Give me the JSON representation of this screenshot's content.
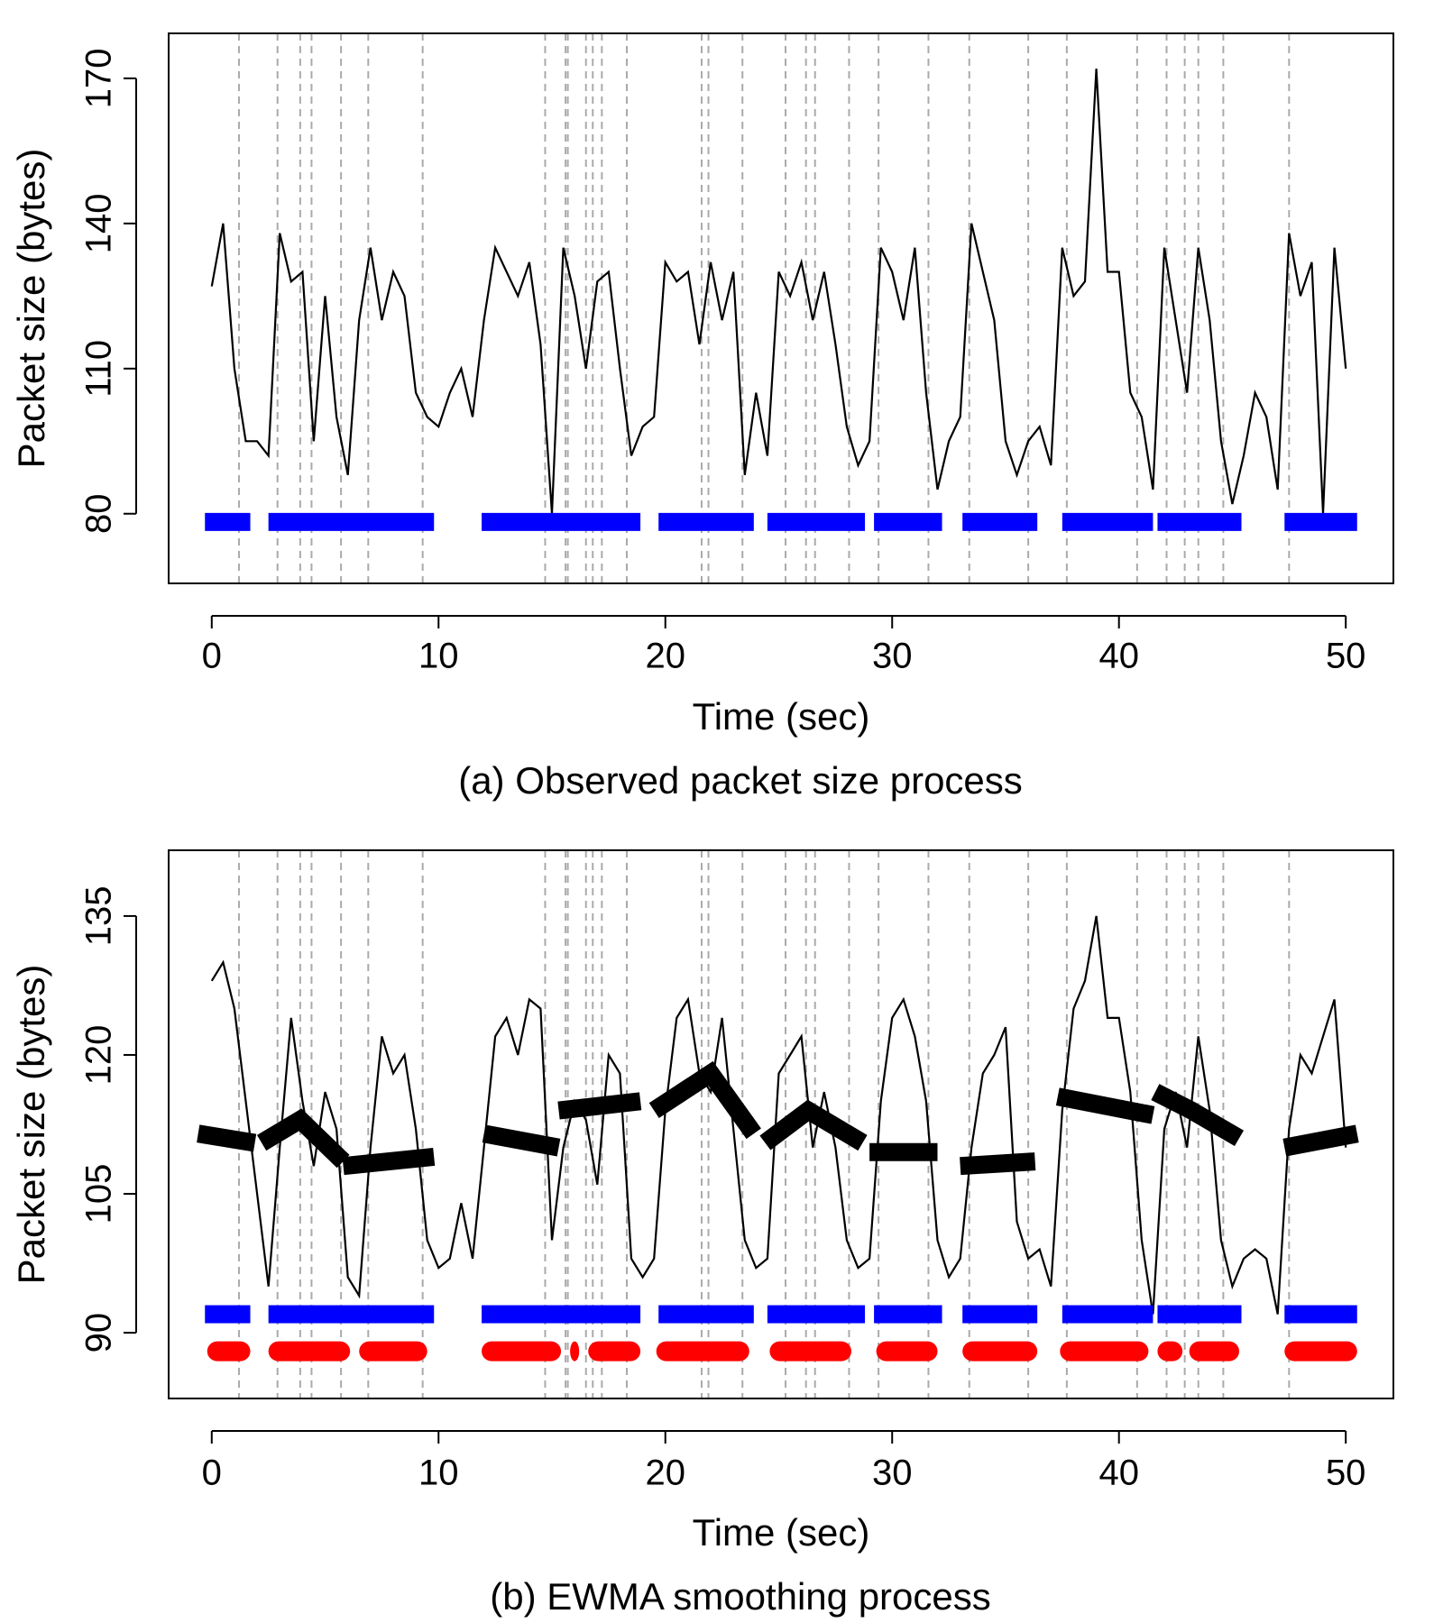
{
  "chart_data": [
    {
      "type": "line",
      "title": "(a) Observed packet size process",
      "xlabel": "Time (sec)",
      "ylabel": "Packet size (bytes)",
      "xlim": [
        -1.9,
        52.1
      ],
      "ylim": [
        65.6,
        179.3
      ],
      "xticks": [
        0,
        10,
        20,
        30,
        40,
        50
      ],
      "yticks": [
        80,
        110,
        140,
        170
      ],
      "line": {
        "color": "#000000",
        "x": [
          0,
          0.5,
          1,
          1.5,
          2,
          2.5,
          3,
          3.5,
          4,
          4.5,
          5,
          5.5,
          6,
          6.5,
          7,
          7.5,
          8,
          8.5,
          9,
          9.5,
          10,
          10.5,
          11,
          11.5,
          12,
          12.5,
          13,
          13.5,
          14,
          14.5,
          15,
          15.5,
          16,
          16.5,
          17,
          17.5,
          18,
          18.5,
          19,
          19.5,
          20,
          20.5,
          21,
          21.5,
          22,
          22.5,
          23,
          23.5,
          24,
          24.5,
          25,
          25.5,
          26,
          26.5,
          27,
          27.5,
          28,
          28.5,
          29,
          29.5,
          30,
          30.5,
          31,
          31.5,
          32,
          32.5,
          33,
          33.5,
          34,
          34.5,
          35,
          35.5,
          36,
          36.5,
          37,
          37.5,
          38,
          38.5,
          39,
          39.5,
          40,
          40.5,
          41,
          41.5,
          42,
          42.5,
          43,
          43.5,
          44,
          44.5,
          45,
          45.5,
          46,
          46.5,
          47,
          47.5,
          48,
          48.5,
          49,
          49.5,
          50
        ],
        "values": [
          127,
          140,
          110,
          95,
          95,
          92,
          138,
          128,
          130,
          95,
          125,
          100,
          88,
          120,
          135,
          120,
          130,
          125,
          105,
          100,
          98,
          105,
          110,
          100,
          120,
          135,
          130,
          125,
          132,
          115,
          80,
          135,
          125,
          110,
          128,
          130,
          110,
          92,
          98,
          100,
          132,
          128,
          130,
          115,
          132,
          120,
          130,
          88,
          105,
          92,
          130,
          125,
          132,
          120,
          130,
          115,
          98,
          90,
          95,
          135,
          130,
          120,
          135,
          105,
          85,
          95,
          100,
          140,
          130,
          120,
          95,
          88,
          95,
          98,
          90,
          135,
          125,
          128,
          172,
          130,
          130,
          105,
          100,
          85,
          135,
          120,
          105,
          135,
          120,
          95,
          82,
          92,
          105,
          100,
          85,
          138,
          125,
          132,
          80,
          135,
          110
        ]
      },
      "breakpoints": [
        1.2,
        2.9,
        3.9,
        4.4,
        5.7,
        6.9,
        9.3,
        14.7,
        15.6,
        15.7,
        16.5,
        16.8,
        17.2,
        18.3,
        21.6,
        21.9,
        23.4,
        25.3,
        26.2,
        26.6,
        28.1,
        29.4,
        31.6,
        33.4,
        36.0,
        37.7,
        40.8,
        42.1,
        42.9,
        43.5,
        44.6,
        47.5
      ],
      "intervals": [
        {
          "color": "#0000ff",
          "level": 78.3,
          "segments": [
            [
              -0.3,
              1.7
            ],
            [
              2.5,
              9.8
            ],
            [
              11.9,
              18.9
            ],
            [
              19.7,
              23.9
            ],
            [
              24.5,
              28.8
            ],
            [
              29.2,
              32.2
            ],
            [
              33.1,
              36.4
            ],
            [
              37.5,
              41.5
            ],
            [
              41.7,
              45.4
            ],
            [
              47.3,
              50.5
            ]
          ]
        }
      ]
    },
    {
      "type": "line",
      "title": "(b) EWMA smoothing process",
      "xlabel": "Time (sec)",
      "ylabel": "Packet size (bytes)",
      "xlim": [
        -1.9,
        52.1
      ],
      "ylim": [
        82.9,
        142.1
      ],
      "xticks": [
        0,
        10,
        20,
        30,
        40,
        50
      ],
      "yticks": [
        90,
        105,
        120,
        135
      ],
      "line": {
        "color": "#000000",
        "x": [
          0,
          0.5,
          1,
          1.5,
          2,
          2.5,
          3,
          3.5,
          4,
          4.5,
          5,
          5.5,
          6,
          6.5,
          7,
          7.5,
          8,
          8.5,
          9,
          9.5,
          10,
          10.5,
          11,
          11.5,
          12,
          12.5,
          13,
          13.5,
          14,
          14.5,
          15,
          15.5,
          16,
          16.5,
          17,
          17.5,
          18,
          18.5,
          19,
          19.5,
          20,
          20.5,
          21,
          21.5,
          22,
          22.5,
          23,
          23.5,
          24,
          24.5,
          25,
          25.5,
          26,
          26.5,
          27,
          27.5,
          28,
          28.5,
          29,
          29.5,
          30,
          30.5,
          31,
          31.5,
          32,
          32.5,
          33,
          33.5,
          34,
          34.5,
          35,
          35.5,
          36,
          36.5,
          37,
          37.5,
          38,
          38.5,
          39,
          39.5,
          40,
          40.5,
          41,
          41.5,
          42,
          42.5,
          43,
          43.5,
          44,
          44.5,
          45,
          45.5,
          46,
          46.5,
          47,
          47.5,
          48,
          48.5,
          49,
          49.5,
          50
        ],
        "values": [
          128,
          130,
          125,
          115,
          105,
          95,
          110,
          124,
          115,
          108,
          116,
          112,
          96,
          94,
          110,
          122,
          118,
          120,
          112,
          100,
          97,
          98,
          104,
          98,
          110,
          122,
          124,
          120,
          126,
          125,
          100,
          110,
          115,
          113,
          106,
          120,
          118,
          98,
          96,
          98,
          114,
          124,
          126,
          118,
          116,
          124,
          112,
          100,
          97,
          98,
          118,
          120,
          122,
          110,
          116,
          110,
          100,
          97,
          98,
          115,
          124,
          126,
          122,
          115,
          100,
          96,
          98,
          110,
          118,
          120,
          123,
          102,
          98,
          99,
          95,
          114,
          125,
          128,
          135,
          124,
          124,
          116,
          100,
          92,
          112,
          116,
          110,
          122,
          114,
          100,
          95,
          98,
          99,
          98,
          92,
          112,
          120,
          118,
          122,
          126,
          110
        ]
      },
      "breakpoints": [
        1.2,
        2.9,
        3.9,
        4.4,
        5.7,
        6.9,
        9.3,
        14.7,
        15.6,
        15.7,
        16.5,
        16.8,
        17.2,
        18.3,
        21.6,
        21.9,
        23.4,
        25.3,
        26.2,
        26.6,
        28.1,
        29.4,
        31.6,
        33.4,
        36.0,
        37.7,
        40.8,
        42.1,
        42.9,
        43.5,
        44.6,
        47.5
      ],
      "intervals": [
        {
          "color": "#0000ff",
          "level": 92.0,
          "segments": [
            [
              -0.3,
              1.7
            ],
            [
              2.5,
              9.8
            ],
            [
              11.9,
              18.9
            ],
            [
              19.7,
              23.9
            ],
            [
              24.5,
              28.8
            ],
            [
              29.2,
              32.2
            ],
            [
              33.1,
              36.4
            ],
            [
              37.5,
              41.5
            ],
            [
              41.7,
              45.4
            ],
            [
              47.3,
              50.5
            ]
          ]
        },
        {
          "color": "#ff0000",
          "level": 88.0,
          "segments": [
            [
              -0.2,
              1.7
            ],
            [
              2.5,
              6.1
            ],
            [
              6.5,
              9.5
            ],
            [
              11.9,
              15.4
            ],
            [
              15.8,
              16.2
            ],
            [
              16.6,
              18.9
            ],
            [
              19.6,
              23.7
            ],
            [
              24.6,
              28.2
            ],
            [
              29.3,
              32.0
            ],
            [
              33.1,
              36.4
            ],
            [
              37.4,
              41.3
            ],
            [
              41.7,
              42.8
            ],
            [
              43.1,
              45.3
            ],
            [
              47.3,
              50.5
            ]
          ]
        }
      ],
      "bands": {
        "color": "#000000",
        "pieces": [
          {
            "x": [
              -0.6,
              1.9
            ],
            "values": [
              111.5,
              110.5
            ]
          },
          {
            "x": [
              2.2,
              3.9,
              5.8
            ],
            "values": [
              110.5,
              113,
              108.5
            ]
          },
          {
            "x": [
              5.8,
              9.8
            ],
            "values": [
              108,
              109
            ]
          },
          {
            "x": [
              12,
              15.3
            ],
            "values": [
              111.5,
              110
            ]
          },
          {
            "x": [
              15.3,
              18.9
            ],
            "values": [
              114,
              115
            ]
          },
          {
            "x": [
              19.5,
              22,
              23.9
            ],
            "values": [
              114,
              118,
              111.5
            ]
          },
          {
            "x": [
              24.4,
              26.3,
              28.7
            ],
            "values": [
              110.5,
              114,
              110.5
            ]
          },
          {
            "x": [
              29,
              32
            ],
            "values": [
              109.5,
              109.5
            ]
          },
          {
            "x": [
              33,
              36.3
            ],
            "values": [
              108,
              108.5
            ]
          },
          {
            "x": [
              37.3,
              41.5
            ],
            "values": [
              115.5,
              113.5
            ]
          },
          {
            "x": [
              41.6,
              43.2,
              45.3
            ],
            "values": [
              116,
              114,
              111
            ]
          },
          {
            "x": [
              47.3,
              50.5
            ],
            "values": [
              110,
              111.5
            ]
          }
        ]
      }
    }
  ]
}
